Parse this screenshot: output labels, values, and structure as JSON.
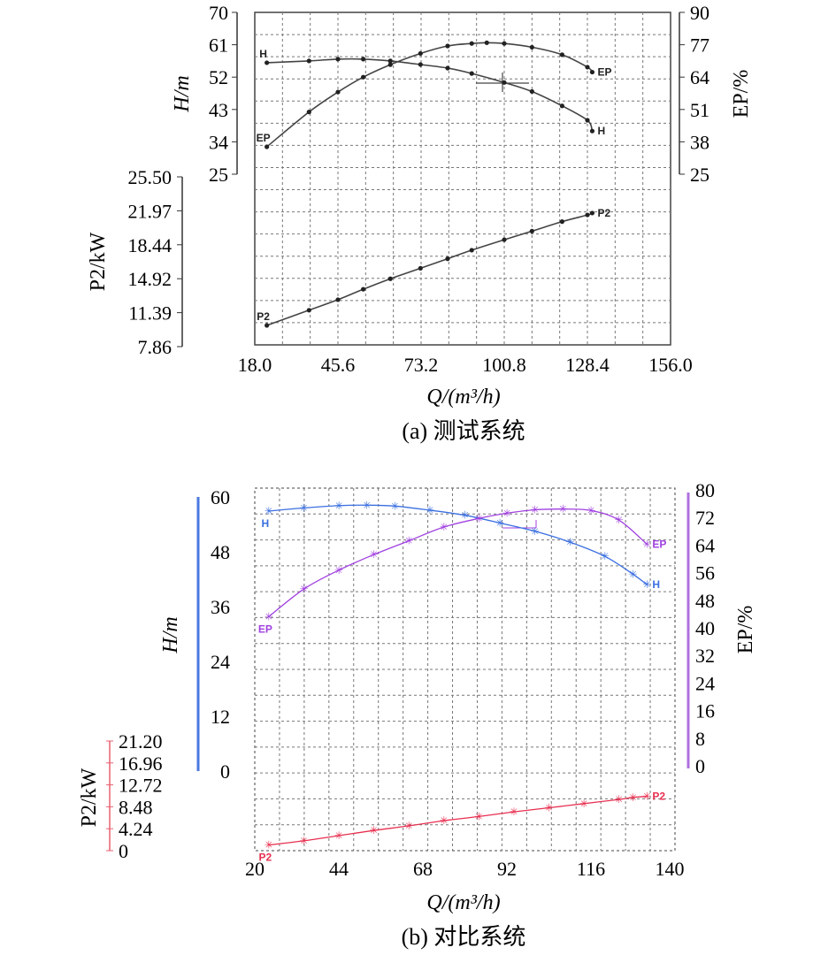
{
  "chart_data": [
    {
      "type": "line",
      "caption": "(a) 测试系统",
      "xlabel": "Q/(m³/h)",
      "x_ticks": [
        "18.0",
        "45.6",
        "73.2",
        "100.8",
        "128.4",
        "156.0"
      ],
      "xlim": [
        18.0,
        156.0
      ],
      "axes": {
        "H": {
          "label": "H/m",
          "ticks": [
            "70",
            "61",
            "52",
            "43",
            "34",
            "25"
          ],
          "ylim": [
            25,
            70
          ]
        },
        "EP": {
          "label": "EP/%",
          "ticks": [
            "90",
            "77",
            "64",
            "51",
            "38",
            "25"
          ],
          "ylim": [
            25,
            90
          ]
        },
        "P2": {
          "label": "P2/kW",
          "ticks": [
            "25.50",
            "21.97",
            "18.44",
            "14.92",
            "11.39",
            "7.86"
          ],
          "ylim": [
            7.86,
            25.5
          ]
        }
      },
      "grid": true,
      "series": [
        {
          "name": "H",
          "axis": "H",
          "color": "#444444",
          "x": [
            22,
            36,
            45.6,
            54,
            63,
            73,
            82,
            90,
            100.8,
            110,
            120,
            128.4,
            130
          ],
          "y": [
            56,
            56.5,
            57,
            57,
            56.5,
            55.5,
            54.5,
            53,
            50.5,
            48,
            44,
            40,
            37
          ]
        },
        {
          "name": "EP",
          "axis": "EP",
          "color": "#444444",
          "x": [
            22,
            36,
            45.6,
            54,
            63,
            73,
            82,
            90,
            95,
            100.8,
            110,
            120,
            128.4,
            130
          ],
          "y": [
            36,
            50,
            58,
            64,
            69,
            73.5,
            76.5,
            77.5,
            77.8,
            77.5,
            76,
            73,
            68,
            66
          ]
        },
        {
          "name": "P2",
          "axis": "P2",
          "color": "#444444",
          "x": [
            22,
            36,
            45.6,
            54,
            63,
            73,
            82,
            90,
            100.8,
            110,
            120,
            128.4,
            130
          ],
          "y": [
            9.9,
            11.5,
            12.6,
            13.7,
            14.8,
            15.9,
            16.9,
            17.8,
            18.9,
            19.8,
            20.8,
            21.5,
            21.7
          ]
        }
      ]
    },
    {
      "type": "line",
      "caption": "(b) 对比系统",
      "xlabel": "Q/(m³/h)",
      "x_ticks": [
        "20",
        "44",
        "68",
        "92",
        "116",
        "140"
      ],
      "xlim": [
        20,
        140
      ],
      "axes": {
        "H": {
          "label": "H/m",
          "ticks": [
            "60",
            "48",
            "36",
            "24",
            "12",
            "0"
          ],
          "ylim": [
            0,
            60
          ]
        },
        "EP": {
          "label": "EP/%",
          "ticks": [
            "80",
            "72",
            "64",
            "56",
            "48",
            "40",
            "32",
            "24",
            "16",
            "8",
            "0"
          ],
          "ylim": [
            0,
            80
          ]
        },
        "P2": {
          "label": "P2/kW",
          "ticks": [
            "21.20",
            "16.96",
            "12.72",
            "8.48",
            "4.24",
            "0"
          ],
          "ylim": [
            0,
            21.2
          ]
        }
      },
      "grid": true,
      "series": [
        {
          "name": "H",
          "axis": "H",
          "color": "#3a6fe0",
          "x": [
            24,
            34,
            44,
            52,
            60,
            70,
            80,
            90,
            100,
            110,
            120,
            128,
            132
          ],
          "y": [
            56.9,
            57.6,
            58.1,
            58.2,
            58.0,
            57.1,
            56.0,
            54.3,
            52.5,
            50.1,
            47.0,
            43.1,
            40.8
          ]
        },
        {
          "name": "EP",
          "axis": "EP",
          "color": "#a040e0",
          "x": [
            24,
            34,
            44,
            54,
            64,
            74,
            84,
            92,
            100,
            108,
            116,
            124,
            132
          ],
          "y": [
            44,
            52,
            57.5,
            62,
            66,
            70,
            72.5,
            74,
            75,
            75.2,
            74.8,
            72,
            65
          ]
        },
        {
          "name": "P2",
          "axis": "P2",
          "color": "#e83050",
          "x": [
            24,
            34,
            44,
            54,
            64,
            74,
            84,
            94,
            104,
            114,
            124,
            128,
            132
          ],
          "y": [
            1.1,
            1.9,
            2.9,
            3.9,
            4.8,
            5.8,
            6.6,
            7.5,
            8.3,
            9.1,
            9.9,
            10.3,
            10.5
          ]
        }
      ]
    }
  ]
}
